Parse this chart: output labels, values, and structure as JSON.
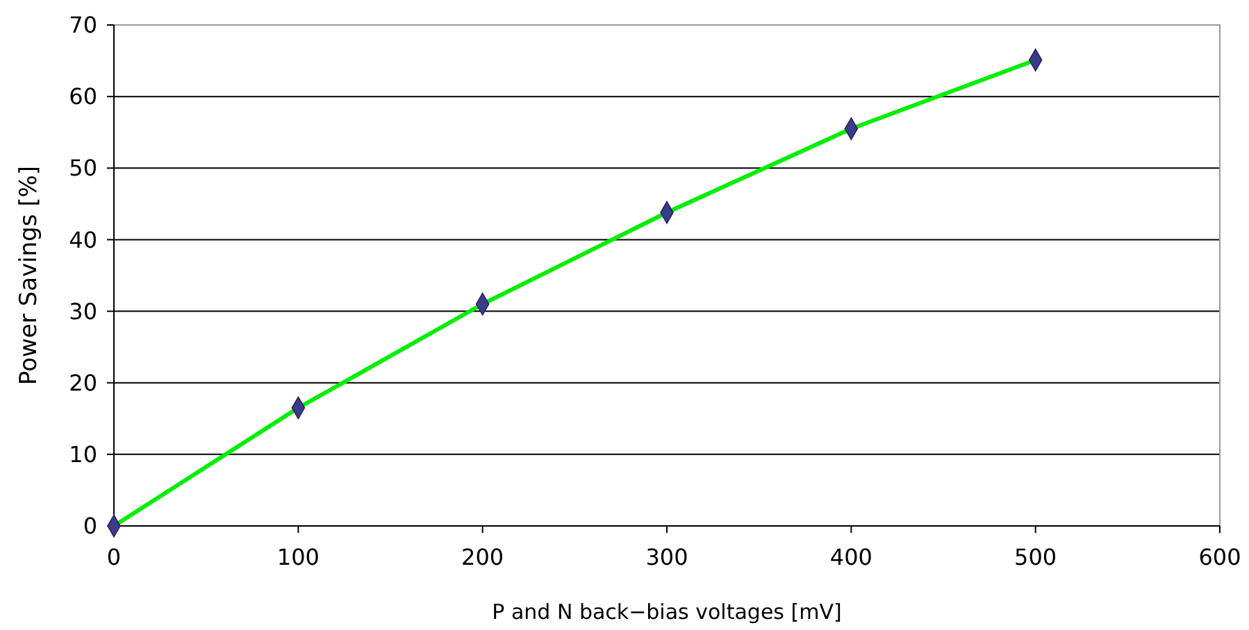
{
  "chart_data": {
    "type": "line",
    "xlabel": "P and N back−bias voltages [mV]",
    "ylabel": "Power Savings [%]",
    "x": [
      0,
      100,
      200,
      300,
      400,
      500
    ],
    "series": [
      {
        "color": "#00ee00",
        "values": [
          0,
          16.5,
          31,
          43.8,
          55.5,
          65.1
        ]
      }
    ],
    "xlim": [
      0,
      600
    ],
    "xticks": [
      0,
      100,
      200,
      300,
      400,
      500,
      600
    ],
    "ylim": [
      0,
      70
    ],
    "yticks": [
      0,
      10,
      20,
      30,
      40,
      50,
      60,
      70
    ],
    "grid": "y",
    "marker": "diamond",
    "line_style": "solid"
  }
}
